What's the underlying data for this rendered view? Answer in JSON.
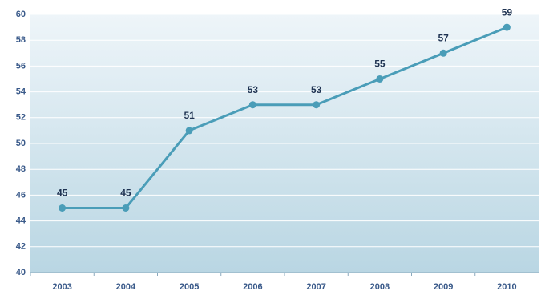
{
  "chart_data": {
    "type": "line",
    "categories": [
      "2003",
      "2004",
      "2005",
      "2006",
      "2007",
      "2008",
      "2009",
      "2010"
    ],
    "series": [
      {
        "color": "#4a9db8",
        "values": [
          45,
          45,
          51,
          53,
          53,
          55,
          57,
          59
        ]
      }
    ],
    "ylim": [
      40,
      60
    ],
    "yticks": [
      40,
      42,
      44,
      46,
      48,
      50,
      52,
      54,
      56,
      58,
      60
    ],
    "grid": true
  }
}
